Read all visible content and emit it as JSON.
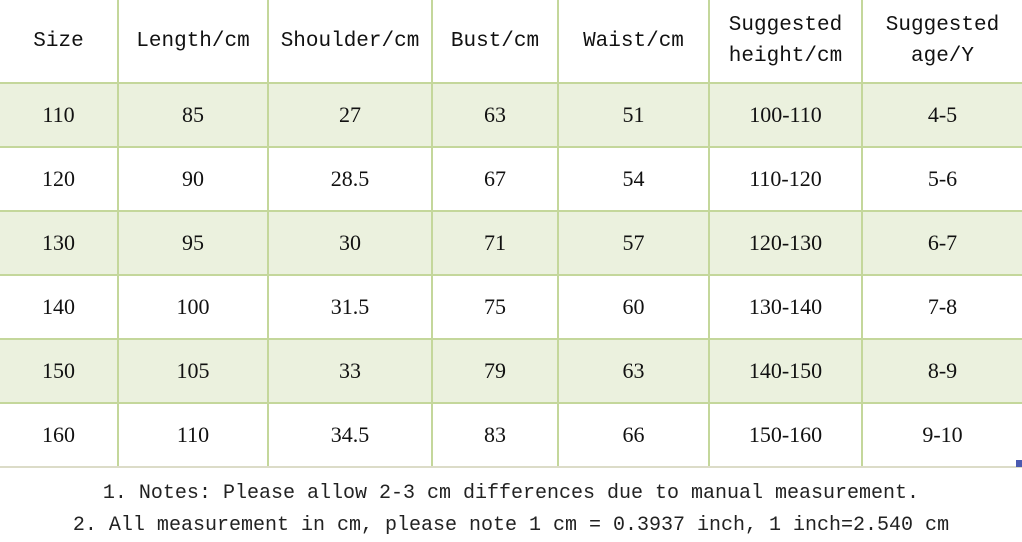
{
  "table": {
    "headers": [
      "Size",
      "Length/cm",
      "Shoulder/cm",
      "Bust/cm",
      "Waist/cm",
      "Suggested height/cm",
      "Suggested age/Y"
    ],
    "rows": [
      [
        "110",
        "85",
        "27",
        "63",
        "51",
        "100-110",
        "4-5"
      ],
      [
        "120",
        "90",
        "28.5",
        "67",
        "54",
        "110-120",
        "5-6"
      ],
      [
        "130",
        "95",
        "30",
        "71",
        "57",
        "120-130",
        "6-7"
      ],
      [
        "140",
        "100",
        "31.5",
        "75",
        "60",
        "130-140",
        "7-8"
      ],
      [
        "150",
        "105",
        "33",
        "79",
        "63",
        "140-150",
        "8-9"
      ],
      [
        "160",
        "110",
        "34.5",
        "83",
        "66",
        "150-160",
        "9-10"
      ]
    ]
  },
  "notes": [
    "1. Notes: Please allow 2-3 cm differences due to manual measurement.",
    "2. All measurement in cm, please note 1 cm = 0.3937 inch, 1 inch=2.540 cm"
  ],
  "colors": {
    "stripe": "#ebf1de",
    "border": "#c4d79b"
  }
}
